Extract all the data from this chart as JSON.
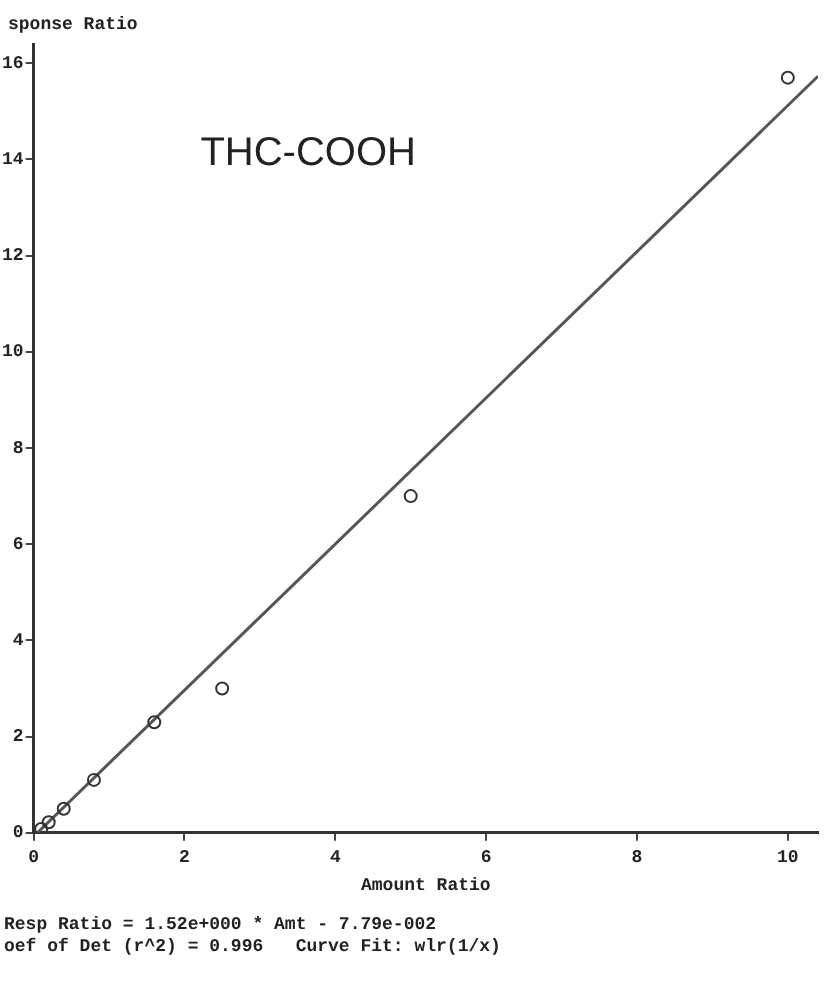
{
  "chart_data": {
    "type": "scatter",
    "title": "THC-COOH",
    "xlabel": "Amount Ratio",
    "ylabel": "sponse Ratio",
    "series": [
      {
        "color": "#333333",
        "marker": "circle",
        "x": [
          0.1,
          0.2,
          0.4,
          0.8,
          1.6,
          2.5,
          5,
          10
        ],
        "values": [
          0.08,
          0.22,
          0.5,
          1.1,
          2.3,
          3.0,
          7.0,
          15.7
        ]
      },
      {
        "type": "line",
        "color": "#555555",
        "marker": "none",
        "x": [
          0.05,
          10.4
        ],
        "values": [
          0,
          15.73
        ]
      }
    ],
    "xlim": [
      0,
      10.4
    ],
    "ylim": [
      0,
      16.4
    ],
    "xticks": [
      0,
      2,
      4,
      6,
      8,
      10
    ],
    "yticks": [
      0,
      2,
      4,
      6,
      8,
      10,
      12,
      14,
      16
    ],
    "annotations": [
      "Resp Ratio = 1.52e+000 * Amt - 7.79e-002",
      "oef of Det (r^2) = 0.996   Curve Fit: wlr(1/x)"
    ],
    "grid": false,
    "legend": false
  }
}
